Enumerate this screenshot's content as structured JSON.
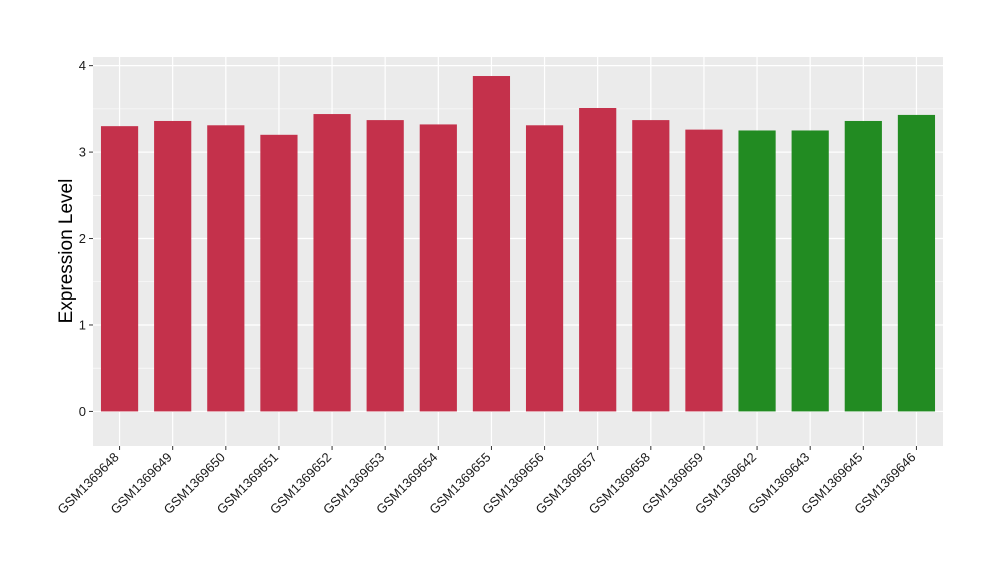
{
  "chart_data": {
    "type": "bar",
    "title": "",
    "xlabel": "",
    "ylabel": "Expression Level",
    "ylim": [
      -0.4,
      4.1
    ],
    "yticks": [
      0,
      1,
      2,
      3,
      4
    ],
    "grid": true,
    "legend": "none",
    "colors": {
      "group1": "#C4314B",
      "group2": "#228B22",
      "panel": "#EBEBEB",
      "grid": "#FFFFFF"
    },
    "categories": [
      "GSM1369648",
      "GSM1369649",
      "GSM1369650",
      "GSM1369651",
      "GSM1369652",
      "GSM1369653",
      "GSM1369654",
      "GSM1369655",
      "GSM1369656",
      "GSM1369657",
      "GSM1369658",
      "GSM1369659",
      "GSM1369642",
      "GSM1369643",
      "GSM1369645",
      "GSM1369646"
    ],
    "values": [
      3.3,
      3.36,
      3.31,
      3.2,
      3.44,
      3.37,
      3.32,
      3.88,
      3.31,
      3.51,
      3.37,
      3.26,
      3.25,
      3.25,
      3.36,
      3.43
    ],
    "bar_groups": [
      "group1",
      "group1",
      "group1",
      "group1",
      "group1",
      "group1",
      "group1",
      "group1",
      "group1",
      "group1",
      "group1",
      "group1",
      "group2",
      "group2",
      "group2",
      "group2"
    ]
  }
}
